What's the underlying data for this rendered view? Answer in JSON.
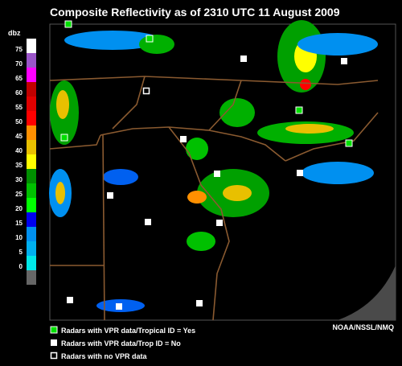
{
  "header": {
    "title": "Composite Reflectivity as of 2310 UTC 11 August 2009"
  },
  "scale": {
    "unit": "dbz",
    "labels": [
      "75",
      "70",
      "65",
      "60",
      "55",
      "50",
      "45",
      "40",
      "35",
      "30",
      "25",
      "20",
      "15",
      "10",
      "5",
      "0"
    ],
    "colors": [
      "#ffffff",
      "#9a55c8",
      "#ff00ff",
      "#c00000",
      "#e00000",
      "#ff0000",
      "#ff9000",
      "#e8c000",
      "#ffff00",
      "#008f00",
      "#00c000",
      "#00ff00",
      "#0000f0",
      "#0090f0",
      "#00b0f0",
      "#00e8e8",
      "#666666"
    ]
  },
  "legend": {
    "items": [
      "Radars with VPR data/Tropical ID = Yes",
      "Radars with VPR data/Trop ID = No",
      "Radars with no VPR data"
    ]
  },
  "credit": "NOAA/NSSL/NMQ"
}
